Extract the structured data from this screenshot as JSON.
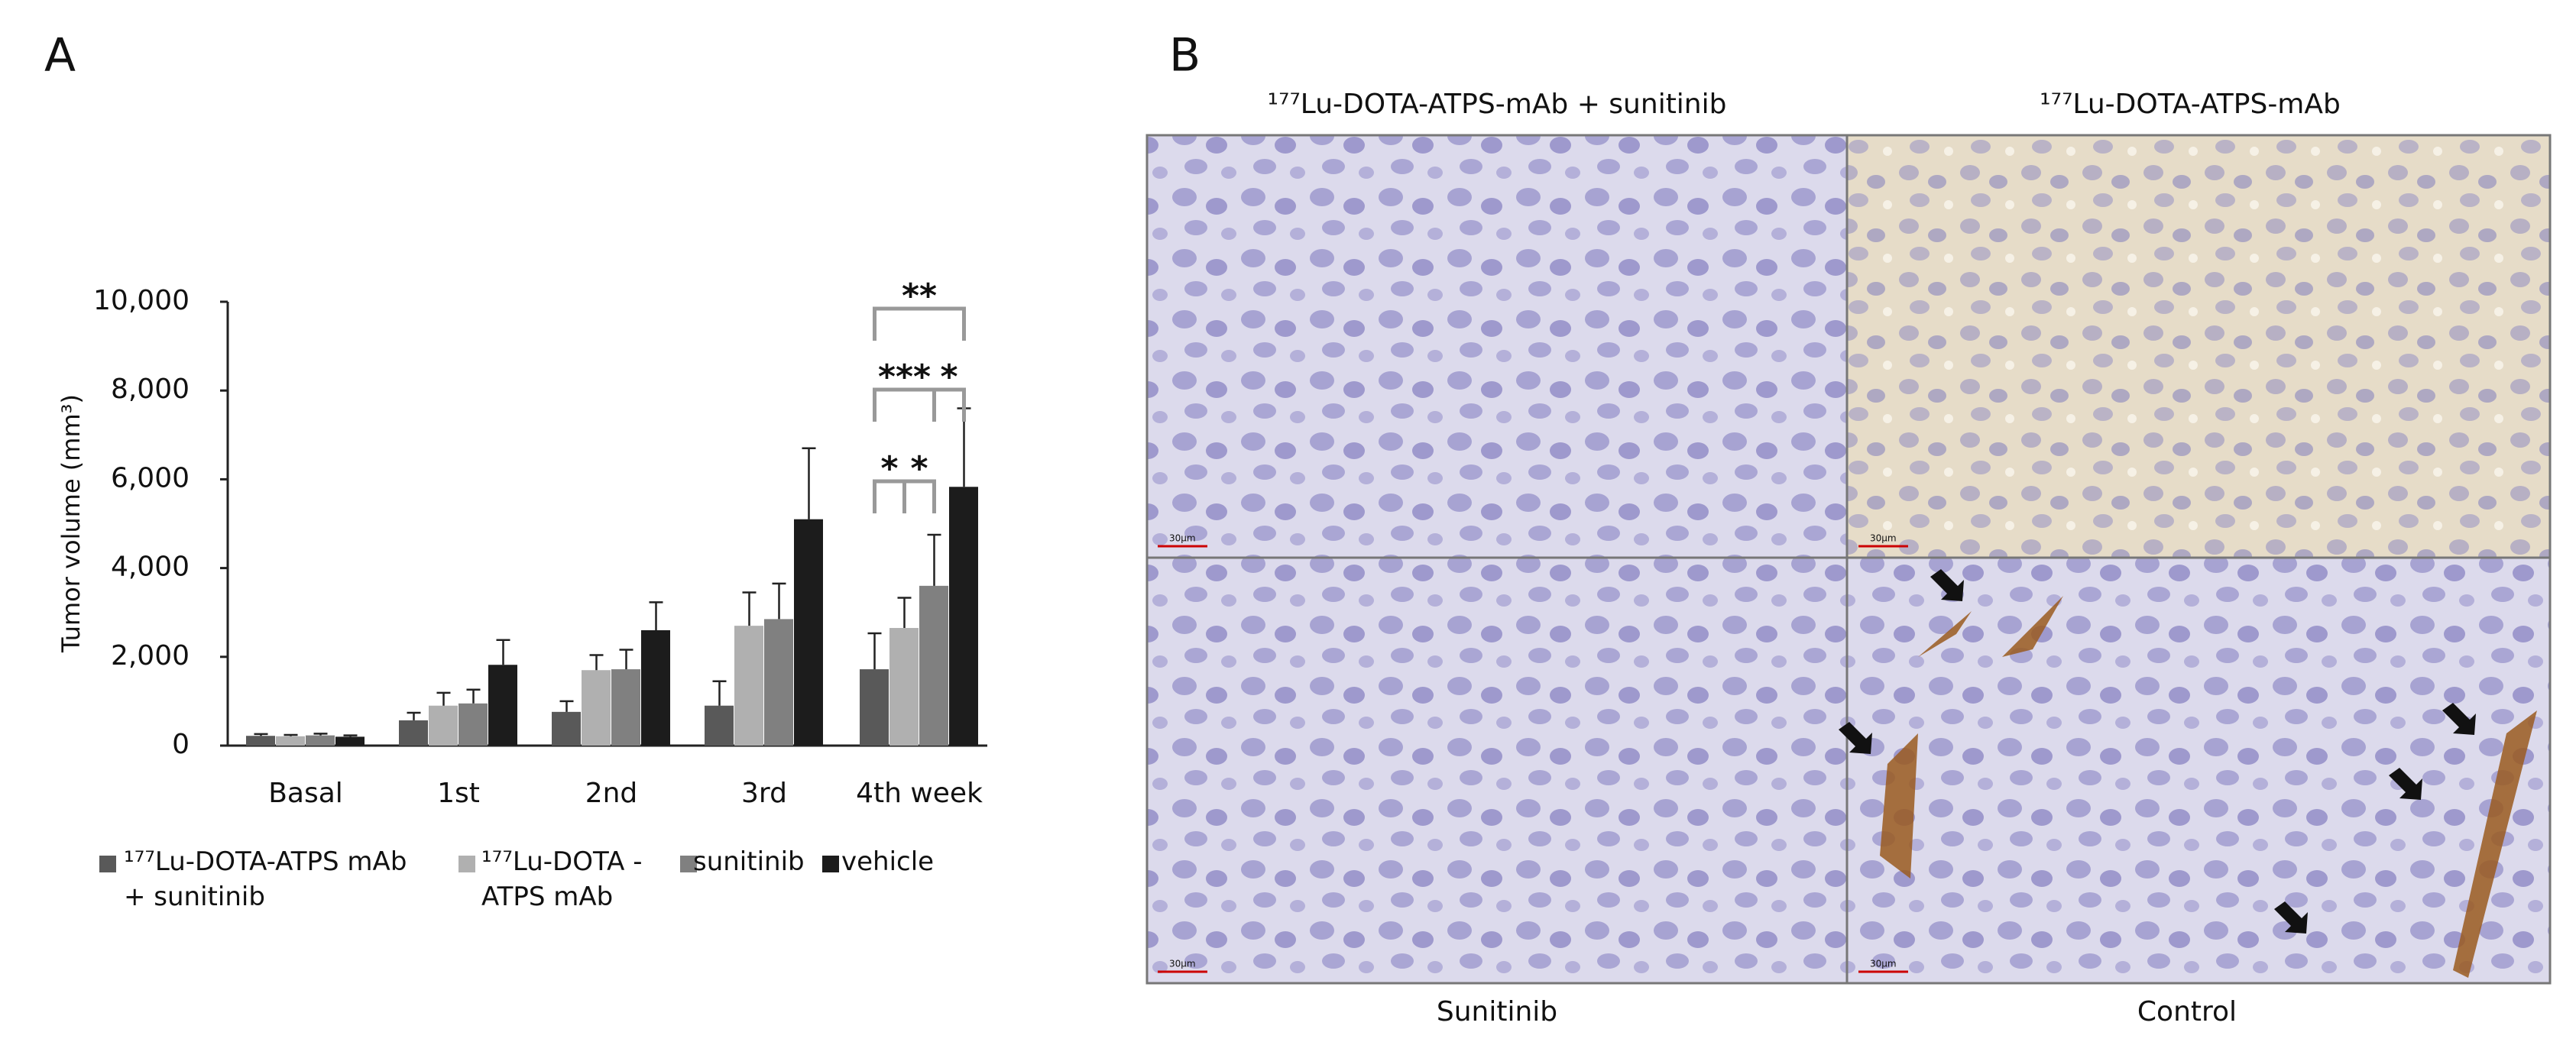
{
  "panel_labels": [
    "A",
    "B"
  ],
  "chart_data": {
    "type": "bar",
    "y_label": "Tumor volume (mm³)",
    "categories": [
      "Basal",
      "1st",
      "2nd",
      "3rd",
      "4th week"
    ],
    "series": [
      {
        "name": "¹⁷⁷Lu-DOTA-ATPS mAb + sunitinib",
        "color": "#595959",
        "values": [
          220,
          570,
          760,
          900,
          1720
        ],
        "errors": [
          40,
          170,
          240,
          550,
          810
        ]
      },
      {
        "name": "¹⁷⁷Lu-DOTA -ATPS mAb",
        "color": "#b0b0b0",
        "values": [
          210,
          900,
          1700,
          2700,
          2650
        ],
        "errors": [
          30,
          290,
          340,
          750,
          680
        ]
      },
      {
        "name": "sunitinib",
        "color": "#808080",
        "values": [
          230,
          950,
          1720,
          2850,
          3600
        ],
        "errors": [
          40,
          310,
          440,
          800,
          1150
        ]
      },
      {
        "name": "vehicle",
        "color": "#1c1c1c",
        "values": [
          200,
          1820,
          2600,
          5100,
          5830
        ],
        "errors": [
          30,
          560,
          630,
          1600,
          1770
        ]
      }
    ],
    "ylim": [
      0,
      10000
    ],
    "yticks": [
      0,
      {
        "value": 2000,
        "label": "2,000"
      },
      {
        "value": 4000,
        "label": "4,000"
      },
      {
        "value": 6000,
        "label": "6,000"
      },
      {
        "value": 8000,
        "label": "8,000"
      },
      {
        "value": 10000,
        "label": "10,000"
      }
    ],
    "annotations": [
      "*",
      "*",
      "***",
      "*",
      "**"
    ],
    "grid": false
  },
  "panel_b": {
    "column_titles": [
      "¹⁷⁷Lu-DOTA-ATPS-mAb + sunitinib",
      "¹⁷⁷Lu-DOTA-ATPS-mAb"
    ],
    "row_captions": [
      "Sunitinib",
      "Control"
    ],
    "scale_bar_labels": [
      "30μm",
      "30μm",
      "30μm",
      "30μm"
    ]
  }
}
